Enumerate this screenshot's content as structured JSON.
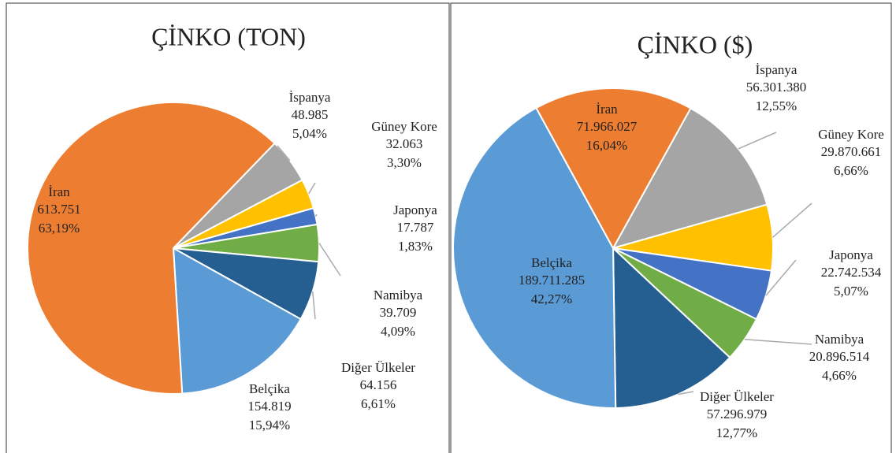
{
  "chart_data": [
    {
      "type": "pie",
      "title": "ÇİNKO (TON)",
      "categories": [
        "İspanya",
        "Güney Kore",
        "Japonya",
        "Namibya",
        "Diğer Ülkeler",
        "Belçika",
        "İran"
      ],
      "values": [
        48985,
        32063,
        17787,
        39709,
        64156,
        154819,
        613751
      ],
      "value_labels": [
        "48.985",
        "32.063",
        "17.787",
        "39.709",
        "64.156",
        "154.819",
        "613.751"
      ],
      "percents": [
        5.04,
        3.3,
        1.83,
        4.09,
        6.61,
        15.94,
        63.19
      ],
      "percent_labels": [
        "5,04%",
        "3,30%",
        "1,83%",
        "4,09%",
        "6,61%",
        "15,94%",
        "63,19%"
      ],
      "colors": [
        "#A5A5A5",
        "#FFC000",
        "#4472C4",
        "#70AD47",
        "#255E91",
        "#5B9BD5",
        "#ED7D31"
      ]
    },
    {
      "type": "pie",
      "title": "ÇİNKO ($)",
      "categories": [
        "İspanya",
        "Güney Kore",
        "Japonya",
        "Namibya",
        "Diğer Ülkeler",
        "Belçika",
        "İran"
      ],
      "values": [
        56301380,
        29870661,
        22742534,
        20896514,
        57296979,
        189711285,
        71966027
      ],
      "value_labels": [
        "56.301.380",
        "29.870.661",
        "22.742.534",
        "20.896.514",
        "57.296.979",
        "189.711.285",
        "71.966.027"
      ],
      "percents": [
        12.55,
        6.66,
        5.07,
        4.66,
        12.77,
        42.27,
        16.04
      ],
      "percent_labels": [
        "12,55%",
        "6,66%",
        "5,07%",
        "4,66%",
        "12,77%",
        "42,27%",
        "16,04%"
      ],
      "colors": [
        "#A5A5A5",
        "#FFC000",
        "#4472C4",
        "#70AD47",
        "#255E91",
        "#5B9BD5",
        "#ED7D31"
      ]
    }
  ]
}
